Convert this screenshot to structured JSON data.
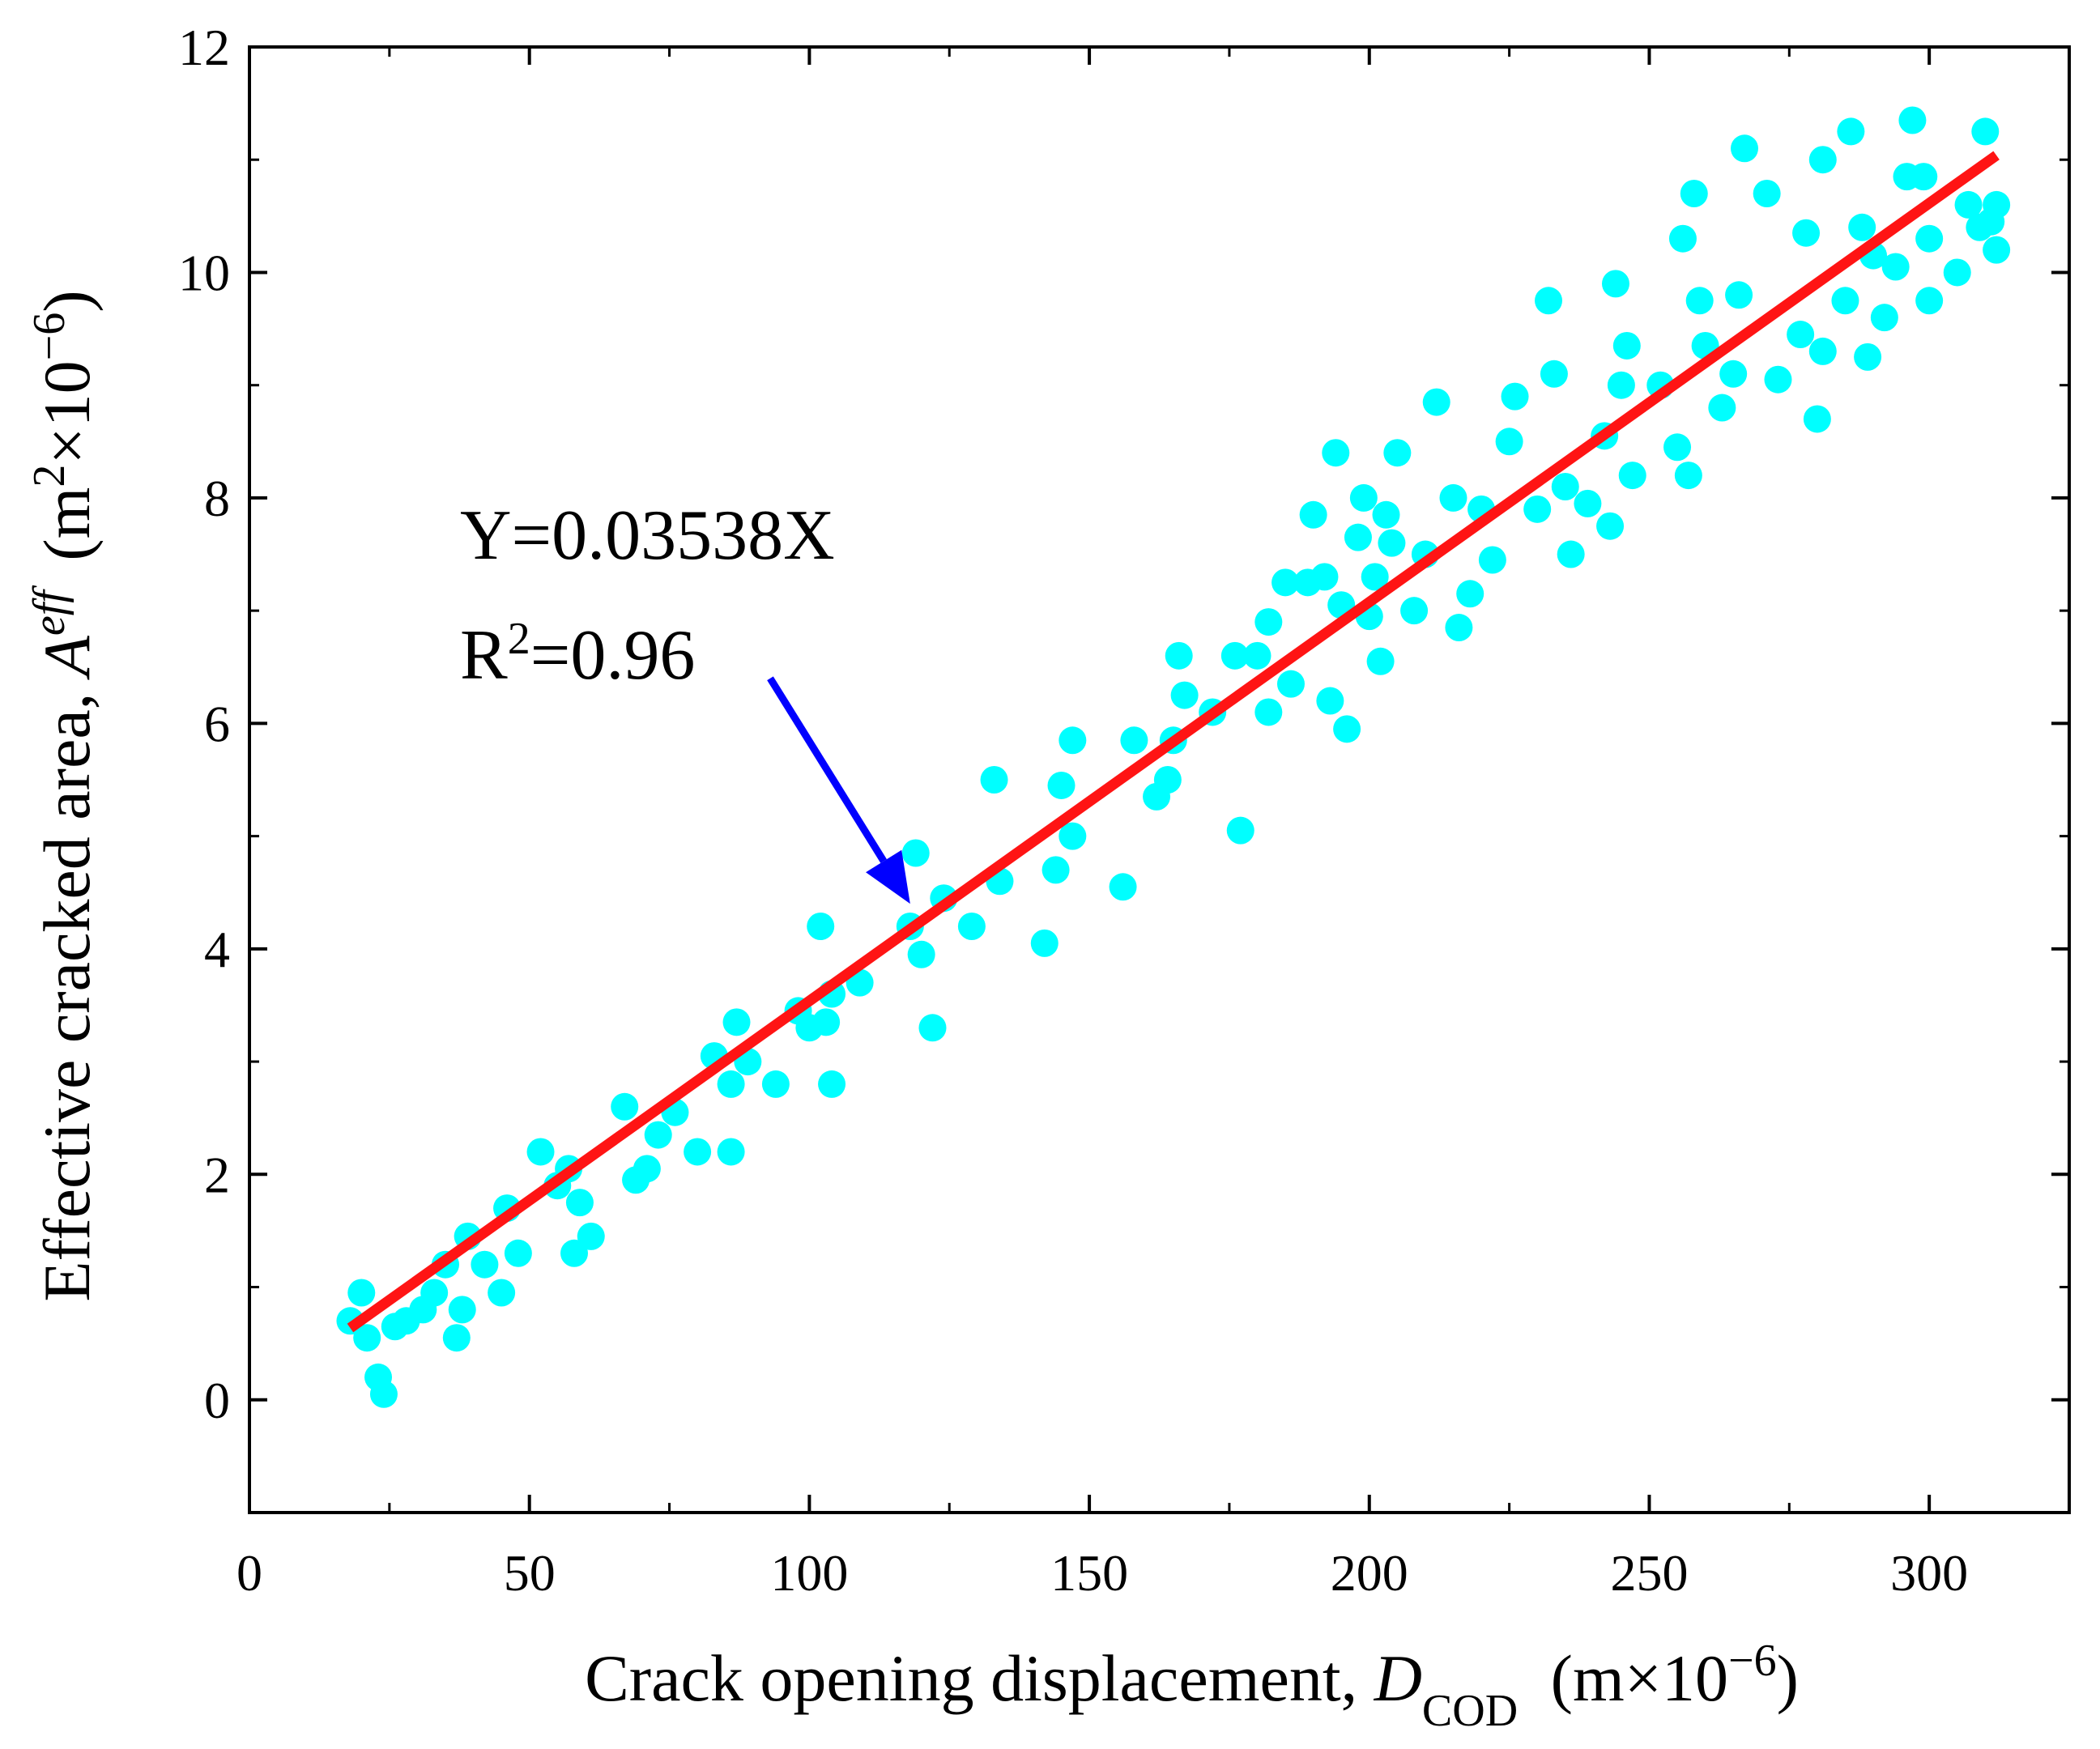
{
  "chart_data": {
    "type": "scatter",
    "xlabel": {
      "prefix": "Crack opening displacement,",
      "symbol": "D",
      "subscript": "COD",
      "unit_open": "(m×10",
      "unit_exp": "−6",
      "unit_close": ")"
    },
    "ylabel": {
      "prefix": "Effective cracked area,",
      "symbol": "A",
      "superscript": "eff",
      "unit_open": "(m",
      "unit_exp1": "2",
      "unit_mid": "×10",
      "unit_exp2": "−6",
      "unit_close": ")"
    },
    "xlim": [
      0,
      325
    ],
    "ylim": [
      -1,
      12
    ],
    "x_ticks": [
      0,
      50,
      100,
      150,
      200,
      250,
      300
    ],
    "x_tick_labels": [
      "0",
      "50",
      "100",
      "150",
      "200",
      "250",
      "300"
    ],
    "y_ticks": [
      0,
      2,
      4,
      6,
      8,
      10,
      12
    ],
    "y_tick_labels": [
      "0",
      "2",
      "4",
      "6",
      "8",
      "10",
      "12"
    ],
    "grid": false,
    "marker_color": "#00FFFF",
    "fit_color": "#FF1414",
    "arrow_color": "#0000FF",
    "fit": {
      "slope": 0.03538,
      "x_range": [
        18,
        312
      ],
      "equation_label": "Y=0.03538X",
      "r2_prefix": "R",
      "r2_exp": "2",
      "r2_value": "=0.96"
    },
    "arrow": {
      "from": [
        93,
        6.4
      ],
      "to": [
        118,
        4.4
      ]
    },
    "points": [
      [
        18,
        0.7
      ],
      [
        20,
        0.95
      ],
      [
        21,
        0.55
      ],
      [
        23,
        0.2
      ],
      [
        24,
        0.05
      ],
      [
        26,
        0.65
      ],
      [
        28,
        0.7
      ],
      [
        31,
        0.8
      ],
      [
        33,
        0.95
      ],
      [
        35,
        1.2
      ],
      [
        37,
        0.55
      ],
      [
        38,
        0.8
      ],
      [
        39,
        1.45
      ],
      [
        42,
        1.2
      ],
      [
        45,
        0.95
      ],
      [
        46,
        1.7
      ],
      [
        48,
        1.3
      ],
      [
        52,
        2.2
      ],
      [
        55,
        1.9
      ],
      [
        57,
        2.05
      ],
      [
        58,
        1.3
      ],
      [
        59,
        1.75
      ],
      [
        61,
        1.45
      ],
      [
        67,
        2.6
      ],
      [
        69,
        1.95
      ],
      [
        71,
        2.05
      ],
      [
        73,
        2.35
      ],
      [
        76,
        2.55
      ],
      [
        80,
        2.2
      ],
      [
        83,
        3.05
      ],
      [
        86,
        2.8
      ],
      [
        86,
        2.2
      ],
      [
        87,
        3.35
      ],
      [
        89,
        3.0
      ],
      [
        94,
        2.8
      ],
      [
        98,
        3.45
      ],
      [
        100,
        3.3
      ],
      [
        102,
        4.2
      ],
      [
        103,
        3.35
      ],
      [
        104,
        3.6
      ],
      [
        104,
        2.8
      ],
      [
        109,
        3.7
      ],
      [
        118,
        4.2
      ],
      [
        119,
        4.85
      ],
      [
        120,
        3.95
      ],
      [
        122,
        3.3
      ],
      [
        124,
        4.45
      ],
      [
        129,
        4.2
      ],
      [
        133,
        5.5
      ],
      [
        134,
        4.6
      ],
      [
        142,
        4.05
      ],
      [
        144,
        4.7
      ],
      [
        145,
        5.45
      ],
      [
        147,
        5.0
      ],
      [
        147,
        5.85
      ],
      [
        156,
        4.55
      ],
      [
        158,
        5.85
      ],
      [
        162,
        5.35
      ],
      [
        164,
        5.5
      ],
      [
        165,
        5.85
      ],
      [
        166,
        6.6
      ],
      [
        167,
        6.25
      ],
      [
        172,
        6.1
      ],
      [
        176,
        6.6
      ],
      [
        177,
        5.05
      ],
      [
        180,
        6.6
      ],
      [
        182,
        6.1
      ],
      [
        182,
        6.9
      ],
      [
        185,
        7.25
      ],
      [
        186,
        6.35
      ],
      [
        189,
        7.25
      ],
      [
        190,
        7.85
      ],
      [
        192,
        7.3
      ],
      [
        193,
        6.2
      ],
      [
        194,
        8.4
      ],
      [
        195,
        7.05
      ],
      [
        196,
        5.95
      ],
      [
        198,
        7.65
      ],
      [
        199,
        8.0
      ],
      [
        200,
        6.95
      ],
      [
        201,
        7.3
      ],
      [
        202,
        6.55
      ],
      [
        203,
        7.85
      ],
      [
        204,
        7.6
      ],
      [
        205,
        8.4
      ],
      [
        208,
        7.0
      ],
      [
        210,
        7.5
      ],
      [
        212,
        8.85
      ],
      [
        215,
        8.0
      ],
      [
        216,
        6.85
      ],
      [
        218,
        7.15
      ],
      [
        220,
        7.9
      ],
      [
        222,
        7.45
      ],
      [
        225,
        8.5
      ],
      [
        226,
        8.9
      ],
      [
        230,
        7.9
      ],
      [
        232,
        9.75
      ],
      [
        233,
        9.1
      ],
      [
        235,
        8.1
      ],
      [
        236,
        7.5
      ],
      [
        239,
        7.95
      ],
      [
        242,
        8.55
      ],
      [
        243,
        7.75
      ],
      [
        244,
        9.9
      ],
      [
        245,
        9.0
      ],
      [
        246,
        9.35
      ],
      [
        247,
        8.2
      ],
      [
        252,
        9.0
      ],
      [
        255,
        8.45
      ],
      [
        256,
        10.3
      ],
      [
        257,
        8.2
      ],
      [
        258,
        10.7
      ],
      [
        259,
        9.75
      ],
      [
        260,
        9.35
      ],
      [
        263,
        8.8
      ],
      [
        265,
        9.1
      ],
      [
        266,
        9.8
      ],
      [
        267,
        11.1
      ],
      [
        271,
        10.7
      ],
      [
        273,
        9.05
      ],
      [
        277,
        9.45
      ],
      [
        278,
        10.35
      ],
      [
        280,
        8.7
      ],
      [
        281,
        9.3
      ],
      [
        281,
        11.0
      ],
      [
        285,
        9.75
      ],
      [
        286,
        11.25
      ],
      [
        288,
        10.4
      ],
      [
        289,
        9.25
      ],
      [
        290,
        10.15
      ],
      [
        292,
        9.6
      ],
      [
        294,
        10.05
      ],
      [
        296,
        10.85
      ],
      [
        297,
        11.35
      ],
      [
        299,
        10.85
      ],
      [
        300,
        10.3
      ],
      [
        300,
        9.75
      ],
      [
        305,
        10.0
      ],
      [
        307,
        10.6
      ],
      [
        309,
        10.4
      ],
      [
        310,
        11.25
      ],
      [
        311,
        10.45
      ],
      [
        312,
        10.6
      ],
      [
        312,
        10.2
      ]
    ]
  }
}
